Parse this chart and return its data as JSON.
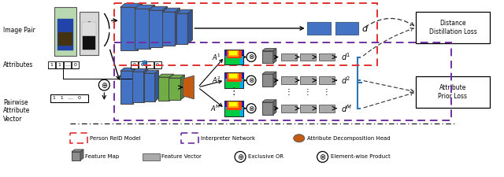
{
  "bg_color": "#ffffff",
  "fig_width": 6.4,
  "fig_height": 2.25,
  "dpi": 100,
  "labels": {
    "image_pair": "Image Pair",
    "attributes": "Attributes",
    "pairwise_line1": "Pairwise",
    "pairwise_line2": "Attribute",
    "pairwise_line3": "Vector",
    "d_label": "d",
    "distance_loss": "Distance\nDistillation Loss",
    "attribute_loss": "Attribute\nPrior Loss",
    "person_reid": "Person ReID Model",
    "interpreter": "Interpreter Network",
    "att_decomp": "Attribute Decomposition Head",
    "feature_map": "Feature Map",
    "feature_vector": "Feature Vector",
    "exclusive_or": "Exclusive OR",
    "element_wise": "Element-wise Product"
  },
  "colors": {
    "blue_block": "#4472c4",
    "green_block": "#70ad47",
    "orange_head": "#c55a11",
    "gray_block": "#8c8c8c",
    "light_gray": "#aaaaaa",
    "red_dashed": "#e03030",
    "purple_dashed": "#7030a0",
    "blue_curly": "#2e75b6",
    "arrow_black": "#000000",
    "arrow_dashed": "#303030"
  }
}
